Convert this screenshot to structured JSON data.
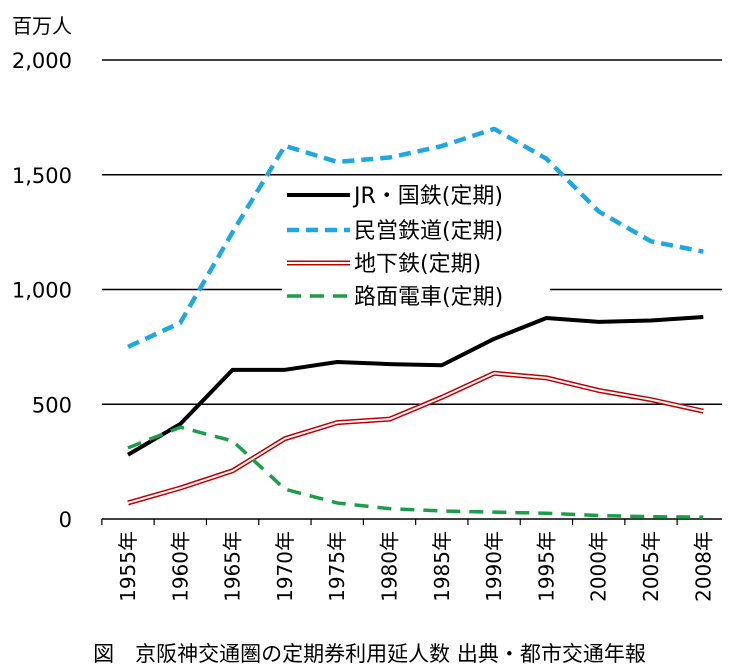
{
  "chart_data": {
    "type": "line",
    "title": "",
    "ylabel": "百万人",
    "xlabel": "",
    "caption": "図　京阪神交通圏の定期券利用延人数 出典・都市交通年報",
    "ylim": [
      0,
      2000
    ],
    "yticks": [
      0,
      500,
      1000,
      1500,
      2000
    ],
    "ytick_labels": [
      "0",
      "500",
      "1,000",
      "1,500",
      "2,000"
    ],
    "grid": true,
    "legend": "center",
    "categories": [
      "1955年",
      "1960年",
      "1965年",
      "1970年",
      "1975年",
      "1980年",
      "1985年",
      "1990年",
      "1995年",
      "2000年",
      "2005年",
      "2008年"
    ],
    "series": [
      {
        "name": "JR・国鉄(定期)",
        "color": "#000000",
        "style": "solid",
        "values": [
          280,
          414,
          650,
          650,
          684,
          675,
          670,
          785,
          876,
          859,
          865,
          880
        ]
      },
      {
        "name": "民営鉄道(定期)",
        "color": "#1fa8e0",
        "style": "dashed",
        "values": [
          750,
          855,
          1250,
          1626,
          1556,
          1575,
          1625,
          1700,
          1570,
          1340,
          1210,
          1165
        ]
      },
      {
        "name": "地下鉄(定期)",
        "color": "#c00000",
        "style": "double",
        "values": [
          70,
          135,
          210,
          350,
          420,
          435,
          530,
          635,
          615,
          560,
          520,
          470
        ]
      },
      {
        "name": "路面電車(定期)",
        "color": "#1a9e48",
        "style": "dashed-long",
        "values": [
          310,
          400,
          340,
          130,
          70,
          45,
          35,
          30,
          25,
          15,
          10,
          8
        ]
      }
    ]
  }
}
